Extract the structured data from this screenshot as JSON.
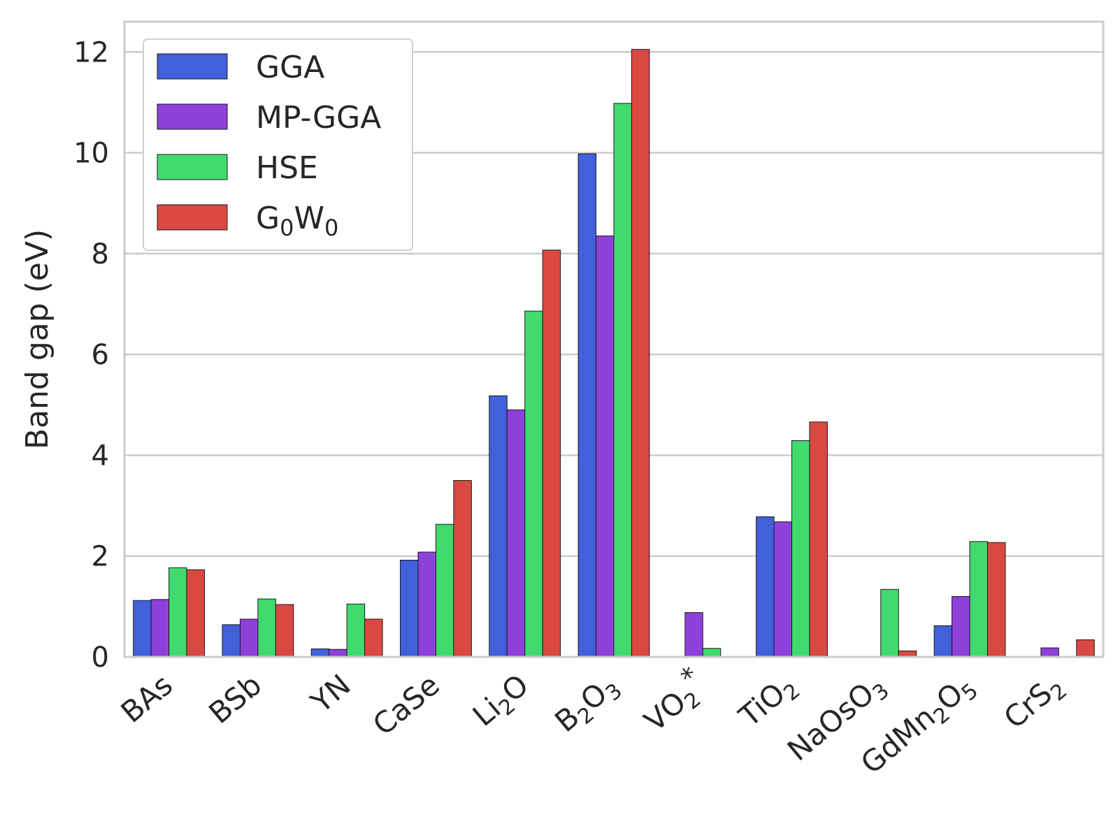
{
  "chart_data": {
    "type": "bar",
    "ylabel": "Band gap (eV)",
    "ylim": [
      0,
      12.6
    ],
    "yticks": [
      0,
      2,
      4,
      6,
      8,
      10,
      12
    ],
    "grid": "horizontal",
    "legend_position": "top-left",
    "categories": [
      "BAs",
      "BSb",
      "YN",
      "CaSe",
      "Li2O",
      "B2O3",
      "VO2*",
      "TiO2",
      "NaOsO3",
      "GdMn2O5",
      "CrS2"
    ],
    "category_labels": [
      [
        {
          "t": "BAs",
          "s": ""
        }
      ],
      [
        {
          "t": "BSb",
          "s": ""
        }
      ],
      [
        {
          "t": "YN",
          "s": ""
        }
      ],
      [
        {
          "t": "CaSe",
          "s": ""
        }
      ],
      [
        {
          "t": "Li",
          "s": ""
        },
        {
          "t": "2",
          "s": "sub"
        },
        {
          "t": "O",
          "s": ""
        }
      ],
      [
        {
          "t": "B",
          "s": ""
        },
        {
          "t": "2",
          "s": "sub"
        },
        {
          "t": "O",
          "s": ""
        },
        {
          "t": "3",
          "s": "sub"
        }
      ],
      [
        {
          "t": "VO",
          "s": ""
        },
        {
          "t": "2",
          "s": "sub"
        },
        {
          "t": "*",
          "s": "sup"
        }
      ],
      [
        {
          "t": "TiO",
          "s": ""
        },
        {
          "t": "2",
          "s": "sub"
        }
      ],
      [
        {
          "t": "NaOsO",
          "s": ""
        },
        {
          "t": "3",
          "s": "sub"
        }
      ],
      [
        {
          "t": "GdMn",
          "s": ""
        },
        {
          "t": "2",
          "s": "sub"
        },
        {
          "t": "O",
          "s": ""
        },
        {
          "t": "5",
          "s": "sub"
        }
      ],
      [
        {
          "t": "CrS",
          "s": ""
        },
        {
          "t": "2",
          "s": "sub"
        }
      ]
    ],
    "series": [
      {
        "name": "GGA",
        "color": "#4160da",
        "values": [
          1.12,
          0.64,
          0.16,
          1.92,
          5.18,
          9.98,
          0.0,
          2.78,
          0.0,
          0.62,
          0.0
        ]
      },
      {
        "name": "MP-GGA",
        "color": "#8e41da",
        "values": [
          1.14,
          0.75,
          0.15,
          2.08,
          4.9,
          8.35,
          0.88,
          2.68,
          0.0,
          1.2,
          0.18
        ]
      },
      {
        "name": "HSE",
        "color": "#41da6e",
        "values": [
          1.77,
          1.15,
          1.05,
          2.63,
          6.86,
          10.98,
          0.17,
          4.29,
          1.34,
          2.29,
          0.0
        ]
      },
      {
        "name": "G0W0",
        "name_parts": [
          {
            "t": "G",
            "s": ""
          },
          {
            "t": "0",
            "s": "sub"
          },
          {
            "t": "W",
            "s": ""
          },
          {
            "t": "0",
            "s": "sub"
          }
        ],
        "color": "#da4941",
        "values": [
          1.73,
          1.04,
          0.75,
          3.5,
          8.07,
          12.05,
          0.0,
          4.66,
          0.12,
          2.27,
          0.34
        ]
      }
    ]
  }
}
